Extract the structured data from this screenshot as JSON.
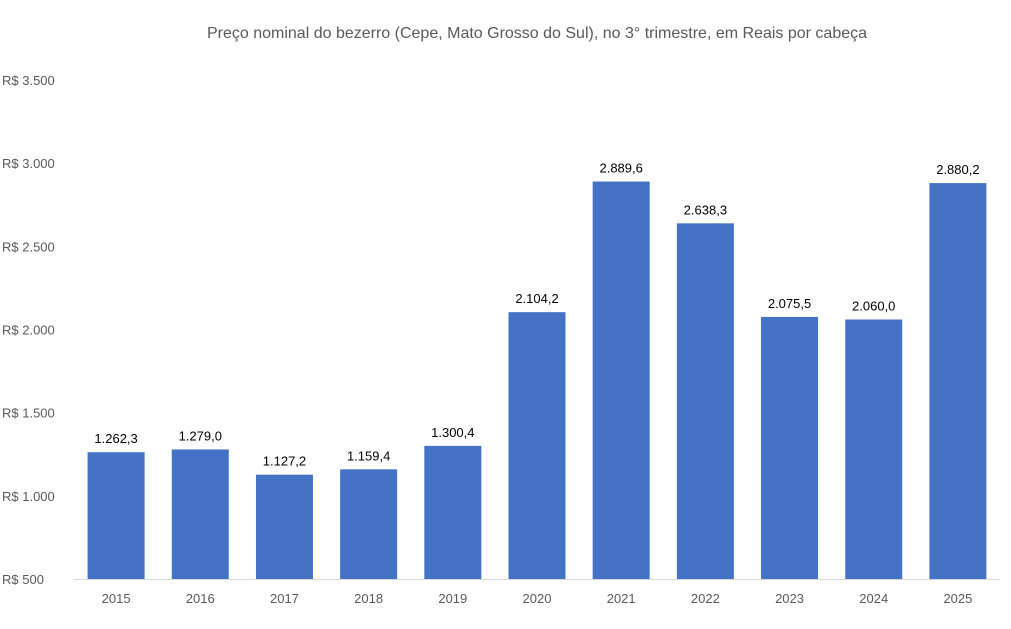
{
  "chart_data": {
    "type": "bar",
    "title": "Preço nominal do bezerro (Cepe, Mato Grosso do Sul), no 3° trimestre, em Reais por cabeça",
    "xlabel": "",
    "ylabel": "",
    "categories": [
      "2015",
      "2016",
      "2017",
      "2018",
      "2019",
      "2020",
      "2021",
      "2022",
      "2023",
      "2024",
      "2025"
    ],
    "values": [
      1262.3,
      1279.0,
      1127.2,
      1159.4,
      1300.4,
      2104.2,
      2889.6,
      2638.3,
      2075.5,
      2060.0,
      2880.2
    ],
    "value_labels": [
      "1.262,3",
      "1.279,0",
      "1.127,2",
      "1.159,4",
      "1.300,4",
      "2.104,2",
      "2.889,6",
      "2.638,3",
      "2.075,5",
      "2.060,0",
      "2.880,2"
    ],
    "ylim": [
      500,
      3500
    ],
    "yticks": [
      500,
      1000,
      1500,
      2000,
      2500,
      3000,
      3500
    ],
    "ytick_labels": [
      "R$ 500",
      "R$ 1.000",
      "R$ 1.500",
      "R$ 2.000",
      "R$ 2.500",
      "R$ 3.000",
      "R$ 3.500"
    ],
    "grid": false,
    "legend": "none",
    "bar_color": "#4472C4"
  }
}
